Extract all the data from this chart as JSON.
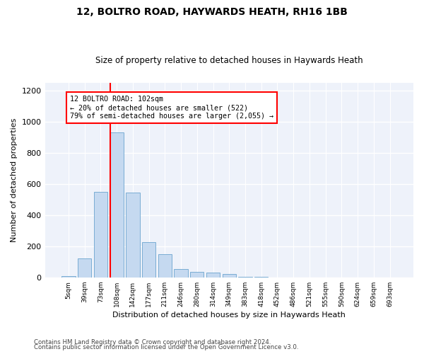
{
  "title1": "12, BOLTRO ROAD, HAYWARDS HEATH, RH16 1BB",
  "title2": "Size of property relative to detached houses in Haywards Heath",
  "xlabel": "Distribution of detached houses by size in Haywards Heath",
  "ylabel": "Number of detached properties",
  "bar_labels": [
    "5sqm",
    "39sqm",
    "73sqm",
    "108sqm",
    "142sqm",
    "177sqm",
    "211sqm",
    "246sqm",
    "280sqm",
    "314sqm",
    "349sqm",
    "383sqm",
    "418sqm",
    "452sqm",
    "486sqm",
    "521sqm",
    "555sqm",
    "590sqm",
    "624sqm",
    "659sqm",
    "693sqm"
  ],
  "bar_values": [
    10,
    120,
    550,
    930,
    545,
    225,
    148,
    55,
    35,
    32,
    22,
    5,
    5,
    0,
    0,
    0,
    0,
    0,
    0,
    0,
    0
  ],
  "bar_color": "#c5d9f0",
  "bar_edgecolor": "#7aadd4",
  "vline_color": "red",
  "annotation_text": "12 BOLTRO ROAD: 102sqm\n← 20% of detached houses are smaller (522)\n79% of semi-detached houses are larger (2,055) →",
  "annotation_box_color": "white",
  "annotation_box_edgecolor": "red",
  "ylim": [
    0,
    1250
  ],
  "yticks": [
    0,
    200,
    400,
    600,
    800,
    1000,
    1200
  ],
  "footer1": "Contains HM Land Registry data © Crown copyright and database right 2024.",
  "footer2": "Contains public sector information licensed under the Open Government Licence v3.0.",
  "bg_color": "#ffffff",
  "plot_bg_color": "#eef2fa"
}
